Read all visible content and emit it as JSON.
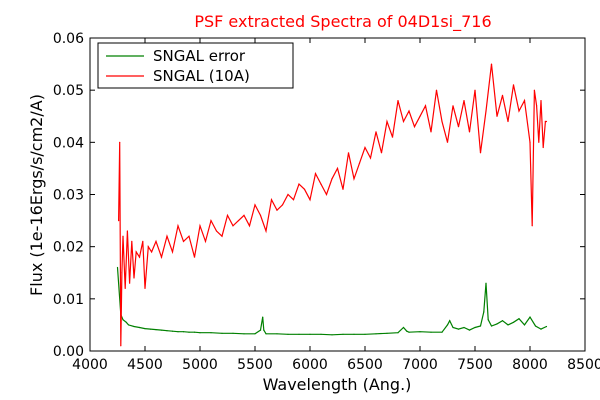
{
  "chart_data": {
    "type": "line",
    "title": "PSF extracted Spectra of 04D1si_716",
    "title_color": "#ff0000",
    "xlabel": "Wavelength (Ang.)",
    "ylabel": "Flux (1e-16Ergs/s/cm2/A)",
    "xlim": [
      4000,
      8500
    ],
    "ylim": [
      0.0,
      0.06
    ],
    "x_ticks": [
      "4000",
      "4500",
      "5000",
      "5500",
      "6000",
      "6500",
      "7000",
      "7500",
      "8000",
      "8500"
    ],
    "y_ticks": [
      "0.00",
      "0.01",
      "0.02",
      "0.03",
      "0.04",
      "0.05",
      "0.06"
    ],
    "grid": false,
    "legend_position": "top-left",
    "series": [
      {
        "name": "SNGAL error",
        "color": "#008000",
        "x": [
          4250,
          4280,
          4300,
          4330,
          4350,
          4400,
          4450,
          4500,
          4550,
          4600,
          4650,
          4700,
          4750,
          4800,
          4850,
          4900,
          4950,
          5000,
          5100,
          5200,
          5300,
          5400,
          5500,
          5550,
          5570,
          5580,
          5600,
          5700,
          5800,
          5900,
          6000,
          6100,
          6200,
          6300,
          6400,
          6500,
          6600,
          6700,
          6800,
          6850,
          6880,
          6900,
          7000,
          7100,
          7200,
          7250,
          7270,
          7300,
          7350,
          7400,
          7450,
          7500,
          7550,
          7580,
          7600,
          7620,
          7650,
          7700,
          7750,
          7800,
          7850,
          7900,
          7950,
          8000,
          8050,
          8100,
          8150
        ],
        "y": [
          0.016,
          0.007,
          0.006,
          0.0055,
          0.005,
          0.0047,
          0.0045,
          0.0043,
          0.0042,
          0.0041,
          0.004,
          0.0039,
          0.0038,
          0.0037,
          0.0037,
          0.0036,
          0.0036,
          0.0035,
          0.0035,
          0.0034,
          0.0034,
          0.0033,
          0.0033,
          0.004,
          0.0065,
          0.004,
          0.0033,
          0.0033,
          0.0032,
          0.0032,
          0.0032,
          0.0032,
          0.0031,
          0.0032,
          0.0032,
          0.0032,
          0.0033,
          0.0034,
          0.0035,
          0.0045,
          0.0038,
          0.0036,
          0.0037,
          0.0036,
          0.0036,
          0.005,
          0.0058,
          0.0045,
          0.0042,
          0.0045,
          0.004,
          0.0045,
          0.0048,
          0.0075,
          0.013,
          0.006,
          0.0048,
          0.0052,
          0.0058,
          0.005,
          0.0055,
          0.0062,
          0.005,
          0.0065,
          0.0048,
          0.0042,
          0.0047
        ]
      },
      {
        "name": "SNGAL (10A)",
        "color": "#ff0000",
        "x": [
          4260,
          4270,
          4280,
          4290,
          4300,
          4320,
          4340,
          4360,
          4380,
          4400,
          4420,
          4450,
          4480,
          4500,
          4530,
          4560,
          4600,
          4650,
          4700,
          4750,
          4800,
          4850,
          4900,
          4950,
          5000,
          5050,
          5100,
          5150,
          5200,
          5250,
          5300,
          5350,
          5400,
          5450,
          5500,
          5550,
          5600,
          5650,
          5700,
          5750,
          5800,
          5850,
          5900,
          5950,
          6000,
          6050,
          6100,
          6150,
          6200,
          6250,
          6300,
          6350,
          6400,
          6450,
          6500,
          6550,
          6600,
          6650,
          6700,
          6750,
          6800,
          6850,
          6900,
          6950,
          7000,
          7050,
          7100,
          7150,
          7200,
          7250,
          7300,
          7350,
          7400,
          7450,
          7500,
          7550,
          7600,
          7650,
          7700,
          7750,
          7800,
          7850,
          7900,
          7950,
          8000,
          8020,
          8040,
          8060,
          8080,
          8100,
          8120,
          8140,
          8150
        ],
        "y": [
          0.025,
          0.04,
          0.001,
          0.015,
          0.022,
          0.012,
          0.023,
          0.013,
          0.021,
          0.014,
          0.019,
          0.018,
          0.021,
          0.012,
          0.02,
          0.019,
          0.021,
          0.018,
          0.022,
          0.019,
          0.024,
          0.021,
          0.022,
          0.018,
          0.024,
          0.021,
          0.025,
          0.023,
          0.022,
          0.026,
          0.024,
          0.025,
          0.026,
          0.024,
          0.028,
          0.026,
          0.023,
          0.029,
          0.027,
          0.028,
          0.03,
          0.029,
          0.032,
          0.031,
          0.029,
          0.034,
          0.032,
          0.03,
          0.033,
          0.035,
          0.031,
          0.038,
          0.033,
          0.036,
          0.039,
          0.037,
          0.042,
          0.038,
          0.044,
          0.041,
          0.048,
          0.044,
          0.046,
          0.043,
          0.045,
          0.047,
          0.042,
          0.05,
          0.044,
          0.04,
          0.047,
          0.043,
          0.048,
          0.042,
          0.05,
          0.038,
          0.046,
          0.055,
          0.045,
          0.049,
          0.044,
          0.051,
          0.046,
          0.048,
          0.04,
          0.024,
          0.05,
          0.047,
          0.04,
          0.048,
          0.039,
          0.044,
          0.044
        ]
      }
    ]
  }
}
